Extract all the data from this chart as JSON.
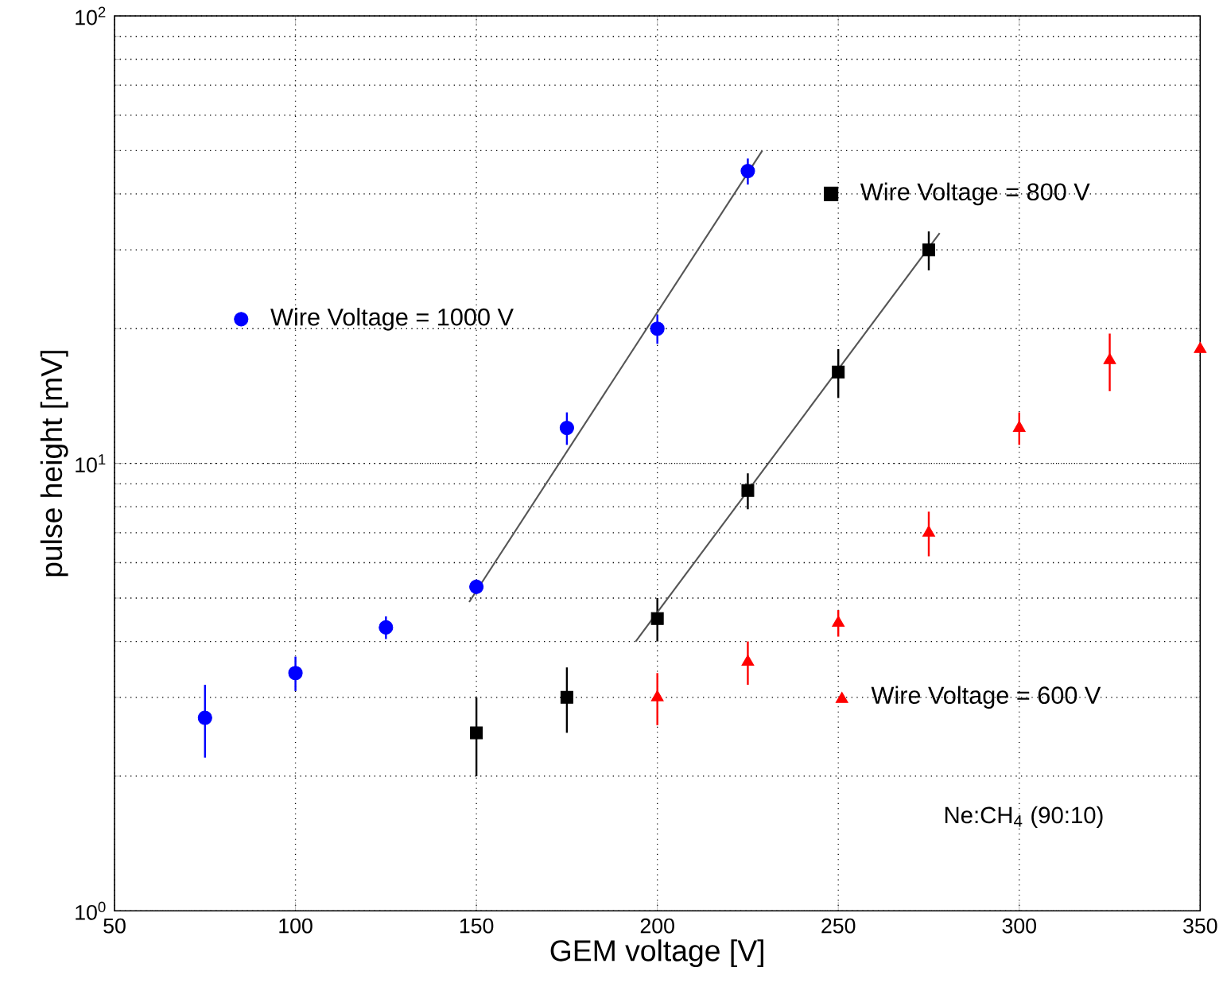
{
  "chart_data": {
    "type": "scatter",
    "xlabel": "GEM voltage [V]",
    "ylabel": "pulse height [mV]",
    "xlim": [
      50,
      350
    ],
    "xticks": [
      50,
      100,
      150,
      200,
      250,
      300,
      350
    ],
    "ylim": [
      1,
      100
    ],
    "yticks": [
      {
        "value": 1,
        "label": "10$^{0}$"
      },
      {
        "value": 10,
        "label": "10$^{1}$"
      },
      {
        "value": 100,
        "label": "10$^{2}$"
      }
    ],
    "log": "y",
    "grid": true,
    "legend": "top",
    "series": [
      {
        "name": "Wire Voltage = 1000 V",
        "color": "#0000ff",
        "marker": "circle",
        "x": [
          75,
          100,
          125,
          150,
          175,
          200,
          225
        ],
        "values": [
          2.7,
          3.4,
          4.3,
          5.3,
          12,
          20,
          45
        ],
        "errors": [
          0.5,
          0.3,
          0.25,
          0.2,
          1,
          1.5,
          3
        ]
      },
      {
        "name": "Wire Voltage = 800 V",
        "color": "#000000",
        "marker": "square",
        "x": [
          150,
          175,
          200,
          225,
          250,
          275
        ],
        "values": [
          2.5,
          3.0,
          4.5,
          8.7,
          16,
          30
        ],
        "errors": [
          0.5,
          0.5,
          0.5,
          0.8,
          2,
          3
        ]
      },
      {
        "name": "Wire Voltage = 600 V",
        "color": "#ff0000",
        "marker": "triangle",
        "x": [
          200,
          225,
          250,
          275,
          300,
          325,
          350
        ],
        "values": [
          3.0,
          3.6,
          4.4,
          7.0,
          12,
          17,
          18
        ],
        "errors": [
          0.4,
          0.4,
          0.3,
          0.8,
          1,
          2.5,
          null
        ]
      },
      {
        "type": "line",
        "color": "#555555",
        "marker": "none",
        "line_style": "solid",
        "x": [
          148,
          229
        ],
        "values": [
          4.9,
          50
        ]
      },
      {
        "type": "line",
        "color": "#555555",
        "marker": "none",
        "line_style": "solid",
        "x": [
          194,
          278
        ],
        "values": [
          4.0,
          32.7
        ]
      }
    ],
    "annotations": [
      "Ne:CH$_{4}$ (90:10)"
    ]
  }
}
